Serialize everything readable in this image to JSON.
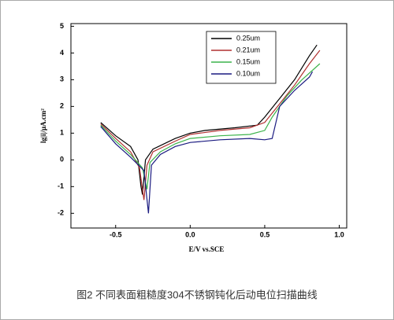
{
  "chart_data": {
    "type": "line",
    "caption": "图2  不同表面粗糙度304不锈钢钝化后动电位扫描曲线",
    "xlabel": "E/V vs.SCE",
    "ylabel": "lg|i|/μA.cm²",
    "xlim": [
      -0.8,
      1.05
    ],
    "ylim": [
      -2.55,
      5.1
    ],
    "xticks": [
      -0.5,
      {
        "value": 0,
        "label": "0.0"
      },
      0.5,
      {
        "value": 1,
        "label": "1.0"
      }
    ],
    "yticks": [
      -2,
      -1,
      0,
      1,
      2,
      3,
      4,
      5
    ],
    "legend": "upper-right",
    "series": [
      {
        "name": "0.25um",
        "color": "#000000",
        "x": [
          -0.6,
          -0.5,
          -0.4,
          -0.35,
          -0.33,
          -0.32,
          -0.3,
          -0.25,
          -0.1,
          0,
          0.1,
          0.3,
          0.45,
          0.5,
          0.6,
          0.7,
          0.8,
          0.85
        ],
        "values": [
          1.4,
          0.9,
          0.5,
          0,
          -1.0,
          -1.3,
          0,
          0.4,
          0.8,
          1.0,
          1.1,
          1.2,
          1.3,
          1.6,
          2.3,
          3.0,
          3.9,
          4.3
        ]
      },
      {
        "name": "0.21um",
        "color": "#b03030",
        "x": [
          -0.6,
          -0.5,
          -0.4,
          -0.34,
          -0.31,
          -0.29,
          -0.25,
          -0.1,
          0,
          0.2,
          0.4,
          0.5,
          0.6,
          0.7,
          0.8,
          0.87
        ],
        "values": [
          1.35,
          0.8,
          0.3,
          -0.3,
          -1.5,
          -0.2,
          0.3,
          0.7,
          0.95,
          1.1,
          1.2,
          1.4,
          2.1,
          2.8,
          3.6,
          4.1
        ]
      },
      {
        "name": "0.15um",
        "color": "#3cb44b",
        "x": [
          -0.6,
          -0.5,
          -0.4,
          -0.32,
          -0.29,
          -0.27,
          -0.2,
          -0.1,
          0,
          0.2,
          0.4,
          0.5,
          0.55,
          0.65,
          0.75,
          0.87
        ],
        "values": [
          1.3,
          0.7,
          0.2,
          -0.3,
          -1.1,
          -0.1,
          0.3,
          0.6,
          0.8,
          0.9,
          0.95,
          1.1,
          1.6,
          2.4,
          3.0,
          3.6
        ]
      },
      {
        "name": "0.10um",
        "color": "#1a1a80",
        "x": [
          -0.6,
          -0.5,
          -0.4,
          -0.31,
          -0.28,
          -0.26,
          -0.2,
          -0.1,
          0,
          0.2,
          0.4,
          0.5,
          0.55,
          0.6,
          0.7,
          0.8,
          0.82
        ],
        "values": [
          1.25,
          0.6,
          0.1,
          -0.4,
          -2.0,
          -0.2,
          0.2,
          0.5,
          0.65,
          0.75,
          0.8,
          0.75,
          0.8,
          2.0,
          2.6,
          3.1,
          3.3
        ]
      }
    ]
  }
}
